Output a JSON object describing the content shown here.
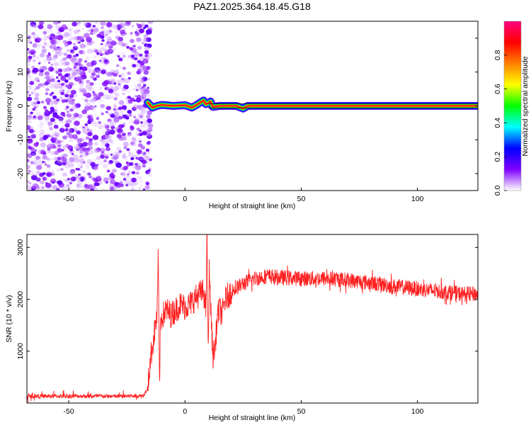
{
  "title": "PAZ1.2025.364.18.45.G18",
  "chart_data": [
    {
      "type": "heatmap",
      "name": "spectrogram",
      "title": "PAZ1.2025.364.18.45.G18",
      "xlabel": "Height of straight line (km)",
      "ylabel": "Frequency (Hz)",
      "xlim": [
        -68,
        126
      ],
      "ylim": [
        -25,
        25
      ],
      "xticks": [
        -50,
        0,
        50,
        100
      ],
      "yticks": [
        -20,
        -10,
        0,
        10,
        20
      ],
      "noise_region": {
        "x_range": [
          -68,
          -16
        ],
        "amplitude_range": [
          0.0,
          0.25
        ]
      },
      "signal_track": {
        "x": [
          -16,
          -14,
          -12,
          -10,
          -5,
          0,
          3,
          5,
          7,
          8,
          9,
          10,
          11,
          12,
          15,
          20,
          22,
          25,
          27,
          30,
          40,
          60,
          80,
          100,
          120,
          126
        ],
        "freq_hz": [
          1.0,
          -0.5,
          0.0,
          0.3,
          0.0,
          0.2,
          -0.5,
          0.3,
          1.2,
          1.6,
          0.5,
          0.8,
          1.3,
          -0.3,
          0.0,
          0.0,
          0.0,
          -0.8,
          0.0,
          0.0,
          0.0,
          0.0,
          0.0,
          0.0,
          0.0,
          0.0
        ]
      },
      "colorbar": {
        "label": "Normalized spectral amplitude",
        "range": [
          0,
          1
        ],
        "ticks": [
          "0.0",
          "0.2",
          "0.4",
          "0.6",
          "0.8"
        ],
        "tick_values": [
          0.0,
          0.2,
          0.4,
          0.6,
          0.8
        ],
        "colors": [
          "#ffffff",
          "#8000ff",
          "#0000ff",
          "#00ffff",
          "#00ff00",
          "#ffff00",
          "#ff8000",
          "#ff0000",
          "#ff0080"
        ]
      }
    },
    {
      "type": "line",
      "name": "snr",
      "xlabel": "Height of straight line (km)",
      "ylabel": "SNR (10 * v/v)",
      "xlim": [
        -68,
        126
      ],
      "ylim": [
        0,
        3250
      ],
      "xticks": [
        -50,
        0,
        50,
        100
      ],
      "yticks": [
        1000,
        2000,
        3000
      ],
      "line_color": "#ff2020",
      "x": [
        -68,
        -50,
        -30,
        -18,
        -16,
        -15,
        -14,
        -13,
        -12,
        -11.5,
        -11,
        -10.5,
        -10,
        -8,
        -6,
        -4,
        -2,
        0,
        2,
        4,
        6,
        8,
        9,
        9.5,
        10,
        10.5,
        11,
        12,
        13,
        14,
        15,
        16,
        17,
        18,
        20,
        25,
        30,
        35,
        40,
        50,
        60,
        70,
        80,
        90,
        100,
        110,
        120,
        126
      ],
      "y": [
        130,
        135,
        130,
        140,
        300,
        800,
        1100,
        1400,
        1700,
        2850,
        300,
        1600,
        1650,
        1800,
        1700,
        1800,
        1900,
        1850,
        1900,
        2000,
        2100,
        2150,
        1800,
        3250,
        800,
        2700,
        1900,
        900,
        1100,
        1700,
        1800,
        1700,
        1950,
        2050,
        2150,
        2300,
        2400,
        2450,
        2420,
        2400,
        2400,
        2370,
        2320,
        2250,
        2200,
        2150,
        2100,
        2100
      ]
    }
  ]
}
